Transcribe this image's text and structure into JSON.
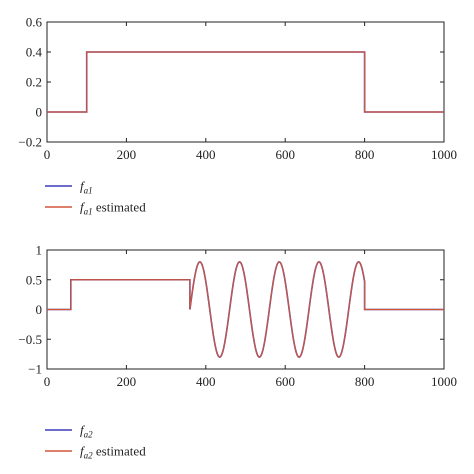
{
  "chart_data": [
    {
      "type": "line",
      "xlim": [
        0,
        1000
      ],
      "ylim": [
        -0.2,
        0.6
      ],
      "xticks": [
        0,
        200,
        400,
        600,
        800,
        1000
      ],
      "yticks": [
        -0.2,
        0,
        0.2,
        0.4,
        0.6
      ],
      "xtick_labels": [
        "0",
        "200",
        "400",
        "600",
        "800",
        "1000"
      ],
      "ytick_labels": [
        "−0.2",
        "0",
        "0.2",
        "0.4",
        "0.6"
      ],
      "grid": false,
      "legend_position": "below-left",
      "series": [
        {
          "name": "f_a1",
          "legend_main": "f",
          "legend_sub": "a1",
          "legend_suffix": "",
          "color": "#3b3bb8",
          "signal": "step",
          "segments": [
            [
              0,
              100,
              0
            ],
            [
              100,
              800,
              0.4
            ],
            [
              800,
              1000,
              0
            ]
          ]
        },
        {
          "name": "f_a1 estimated",
          "legend_main": "f",
          "legend_sub": "a1",
          "legend_suffix": " estimated",
          "color": "#d0563a",
          "signal": "step",
          "segments": [
            [
              0,
              100,
              0
            ],
            [
              100,
              800,
              0.4
            ],
            [
              800,
              1000,
              0
            ]
          ]
        }
      ]
    },
    {
      "type": "line",
      "xlim": [
        0,
        1000
      ],
      "ylim": [
        -1,
        1
      ],
      "xticks": [
        0,
        200,
        400,
        600,
        800,
        1000
      ],
      "yticks": [
        -1,
        -0.5,
        0,
        0.5,
        1
      ],
      "xtick_labels": [
        "0",
        "200",
        "400",
        "600",
        "800",
        "1000"
      ],
      "ytick_labels": [
        "−1",
        "−0.5",
        "0",
        "0.5",
        "1"
      ],
      "grid": false,
      "legend_position": "below-left",
      "series": [
        {
          "name": "f_a2",
          "legend_main": "f",
          "legend_sub": "a2",
          "legend_suffix": "",
          "color": "#3b3bb8",
          "signal": "step-sine",
          "segments": [
            [
              0,
              60,
              0
            ],
            [
              60,
              360,
              0.5
            ],
            [
              800,
              1000,
              0
            ]
          ],
          "sine": {
            "x_start": 360,
            "x_end": 800,
            "amplitude": 0.8,
            "period": 100
          }
        },
        {
          "name": "f_a2 estimated",
          "legend_main": "f",
          "legend_sub": "a2",
          "legend_suffix": " estimated",
          "color": "#d0563a",
          "signal": "step-sine",
          "segments": [
            [
              0,
              60,
              0
            ],
            [
              60,
              360,
              0.5
            ],
            [
              800,
              1000,
              0
            ]
          ],
          "sine": {
            "x_start": 360,
            "x_end": 800,
            "amplitude": 0.8,
            "period": 100
          }
        }
      ]
    }
  ]
}
